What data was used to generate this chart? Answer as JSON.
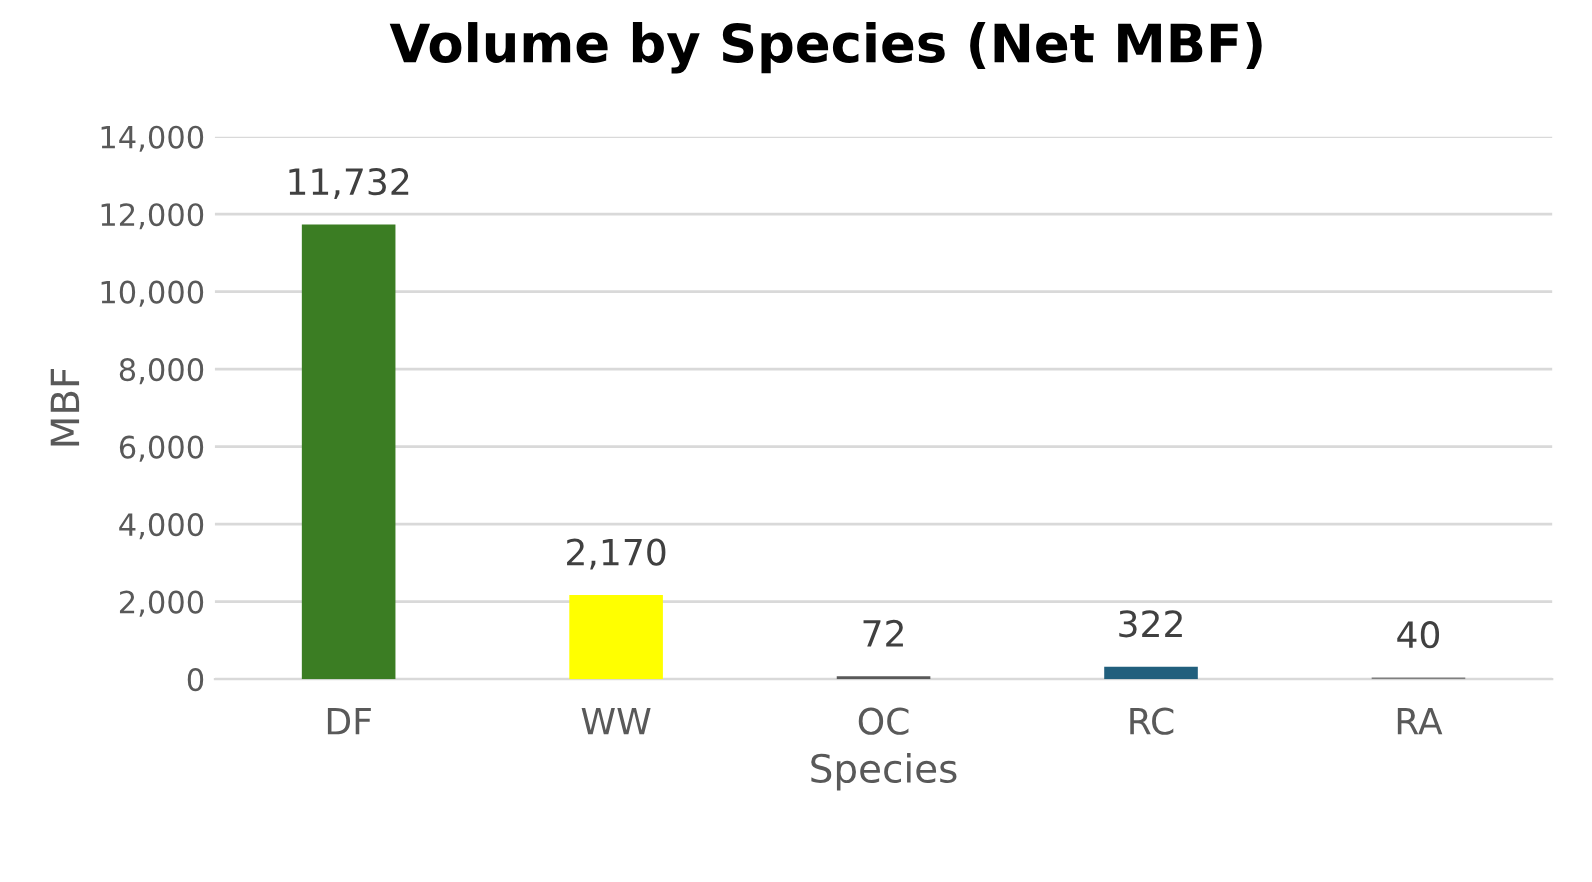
{
  "chart_data": {
    "type": "bar",
    "title": "Volume by Species (Net MBF)",
    "xlabel": "Species",
    "ylabel": "MBF",
    "categories": [
      "DF",
      "WW",
      "OC",
      "RC",
      "RA"
    ],
    "values": [
      11732,
      2170,
      72,
      322,
      40
    ],
    "colors": [
      "#3b7d23",
      "#ffff00",
      "#595959",
      "#215f7d",
      "#7f7f7f"
    ],
    "value_labels": [
      "11,732",
      "2,170",
      "72",
      "322",
      "40"
    ],
    "ylim": [
      0,
      14000
    ],
    "yticks": [
      {
        "value": 0,
        "label": "0"
      },
      {
        "value": 2000,
        "label": "2,000"
      },
      {
        "value": 4000,
        "label": "4,000"
      },
      {
        "value": 6000,
        "label": "6,000"
      },
      {
        "value": 8000,
        "label": "8,000"
      },
      {
        "value": 10000,
        "label": "10,000"
      },
      {
        "value": 12000,
        "label": "12,000"
      },
      {
        "value": 14000,
        "label": "14,000"
      }
    ],
    "grid": "y",
    "legend": false
  }
}
